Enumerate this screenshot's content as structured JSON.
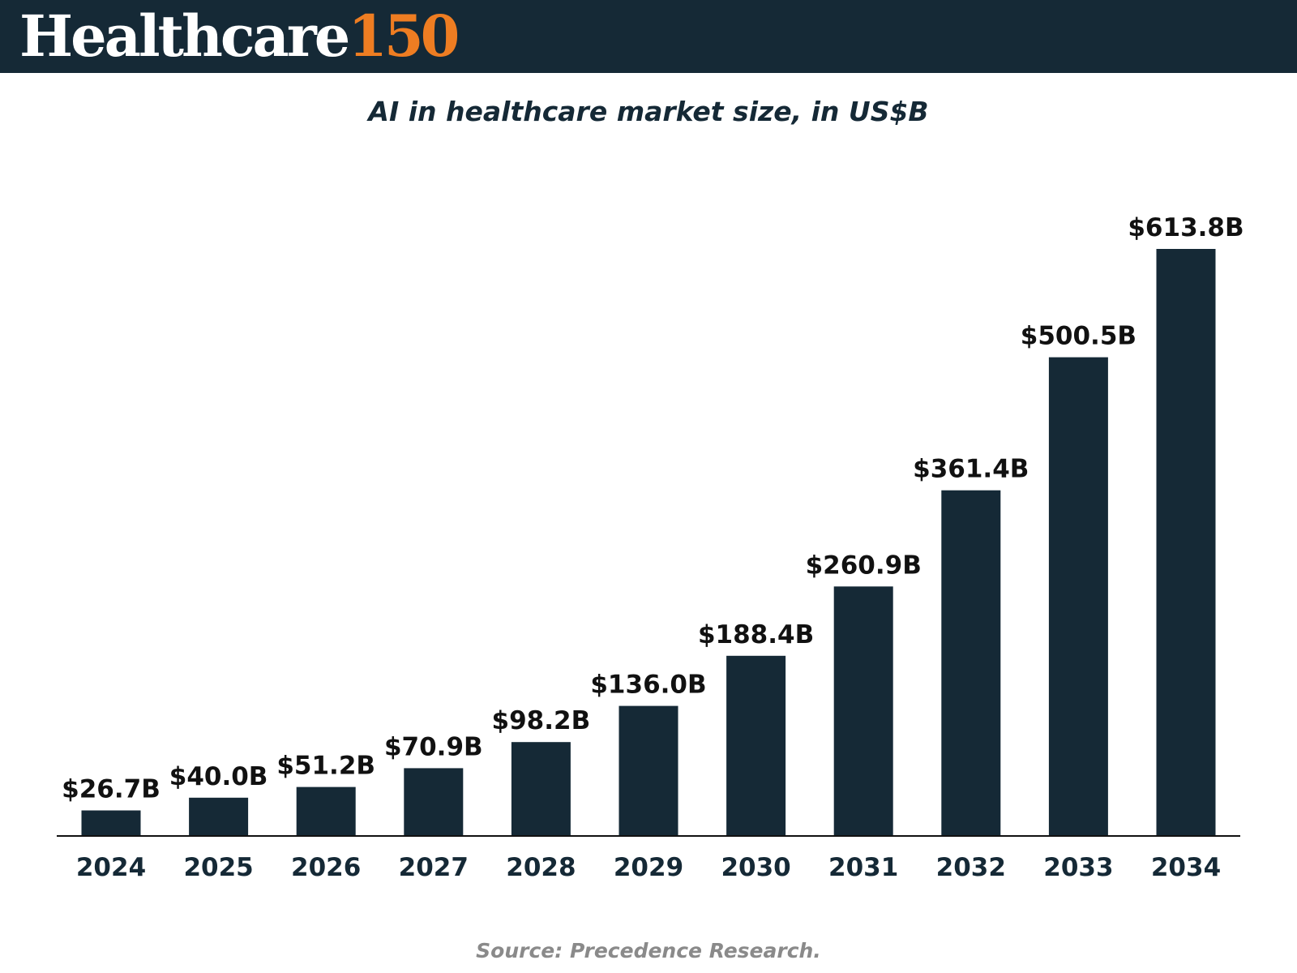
{
  "brand": {
    "word": "Healthcare",
    "number": "150",
    "header_color": "#152936",
    "accent_color": "#ee7d22"
  },
  "chart_data": {
    "type": "bar",
    "title": "AI in healthcare market size, in US$B",
    "categories": [
      "2024",
      "2025",
      "2026",
      "2027",
      "2028",
      "2029",
      "2030",
      "2031",
      "2032",
      "2033",
      "2034"
    ],
    "values": [
      26.7,
      40.0,
      51.2,
      70.9,
      98.2,
      136.0,
      188.4,
      260.9,
      361.4,
      500.5,
      613.8
    ],
    "value_labels": [
      "$26.7B",
      "$40.0B",
      "$51.2B",
      "$70.9B",
      "$98.2B",
      "$136.0B",
      "$188.4B",
      "$260.9B",
      "$361.4B",
      "$500.5B",
      "$613.8B"
    ],
    "xlabel": "",
    "ylabel": "",
    "ylim": [
      0,
      613.8
    ],
    "grid": false,
    "legend": "none",
    "bar_color": "#152936"
  },
  "source": "Source: Precedence Research."
}
